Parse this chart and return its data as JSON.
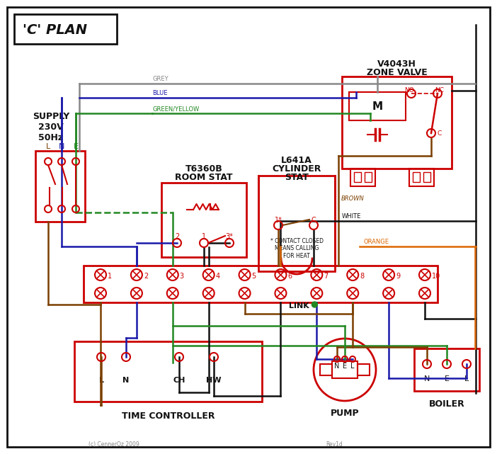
{
  "title": "'C' PLAN",
  "bg_color": "#ffffff",
  "red": "#cc0000",
  "blue": "#1a1aaa",
  "green": "#228822",
  "grey": "#888888",
  "brown": "#7B3F00",
  "orange": "#DD6600",
  "black": "#111111",
  "supply_text": "SUPPLY\n230V\n50Hz",
  "room_stat_title": "T6360B\nROOM STAT",
  "cyl_stat_title": "L641A\nCYLINDER\nSTAT",
  "time_ctrl_title": "TIME CONTROLLER",
  "pump_title": "PUMP",
  "boiler_title": "BOILER",
  "link_text": "LINK",
  "copyright": "(c) CennerOz 2009",
  "rev": "Rev1d",
  "grey_label": "GREY",
  "blue_label": "BLUE",
  "gy_label": "GREEN/YELLOW",
  "brown_label": "BROWN",
  "white_label": "WHITE",
  "orange_label": "ORANGE"
}
